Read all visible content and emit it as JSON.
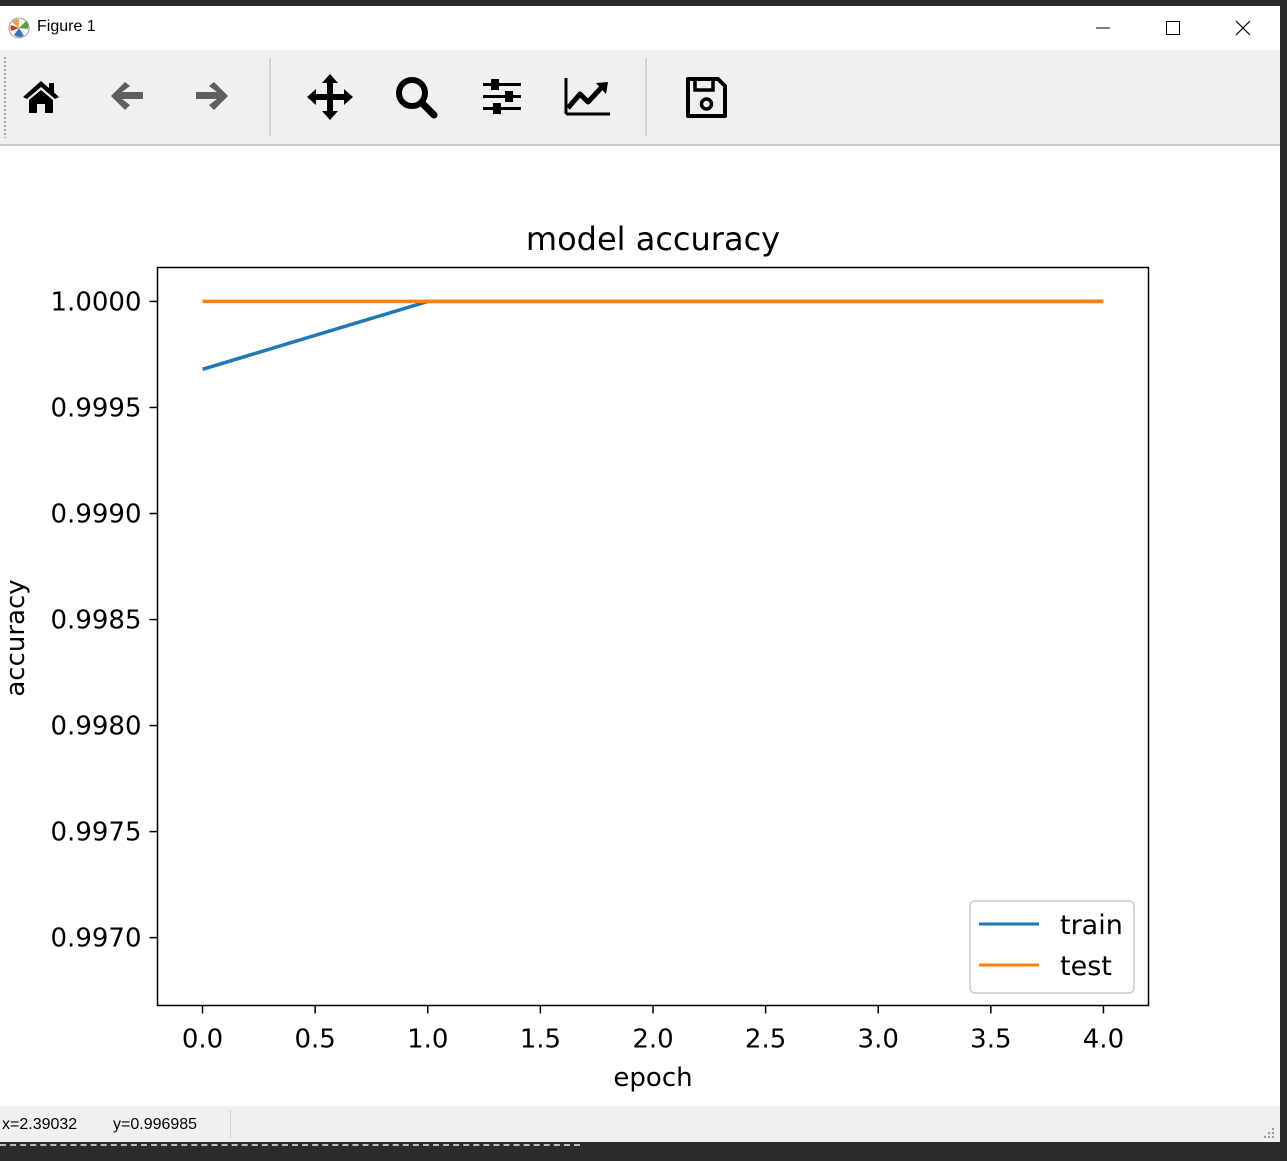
{
  "window": {
    "title": "Figure 1"
  },
  "toolbar": {
    "tools": [
      {
        "name": "home-icon"
      },
      {
        "name": "back-arrow-icon"
      },
      {
        "name": "forward-arrow-icon"
      },
      {
        "name": "pan-icon"
      },
      {
        "name": "zoom-icon"
      },
      {
        "name": "configure-subplots-icon"
      },
      {
        "name": "edit-axis-icon"
      },
      {
        "name": "save-icon"
      }
    ]
  },
  "status": {
    "x": "x=2.39032",
    "y": "y=0.996985"
  },
  "chart_data": {
    "type": "line",
    "title": "model accuracy",
    "xlabel": "epoch",
    "ylabel": "accuracy",
    "xlim": [
      -0.2,
      4.2
    ],
    "ylim": [
      0.99668,
      1.00016
    ],
    "xticks": [
      0.0,
      0.5,
      1.0,
      1.5,
      2.0,
      2.5,
      3.0,
      3.5,
      4.0
    ],
    "xtick_labels": [
      "0.0",
      "0.5",
      "1.0",
      "1.5",
      "2.0",
      "2.5",
      "3.0",
      "3.5",
      "4.0"
    ],
    "yticks": [
      0.997,
      0.9975,
      0.998,
      0.9985,
      0.999,
      0.9995,
      1.0
    ],
    "ytick_labels": [
      "0.9970",
      "0.9975",
      "0.9980",
      "0.9985",
      "0.9990",
      "0.9995",
      "1.0000"
    ],
    "legend_position": "lower-right",
    "series": [
      {
        "name": "train",
        "color": "#1f77b4",
        "x": [
          0,
          1,
          2,
          3,
          4
        ],
        "y": [
          0.99968,
          1.0,
          1.0,
          1.0,
          1.0
        ]
      },
      {
        "name": "test",
        "color": "#ff7f0e",
        "x": [
          0,
          1,
          2,
          3,
          4
        ],
        "y": [
          1.0,
          1.0,
          1.0,
          1.0,
          1.0
        ]
      }
    ]
  }
}
